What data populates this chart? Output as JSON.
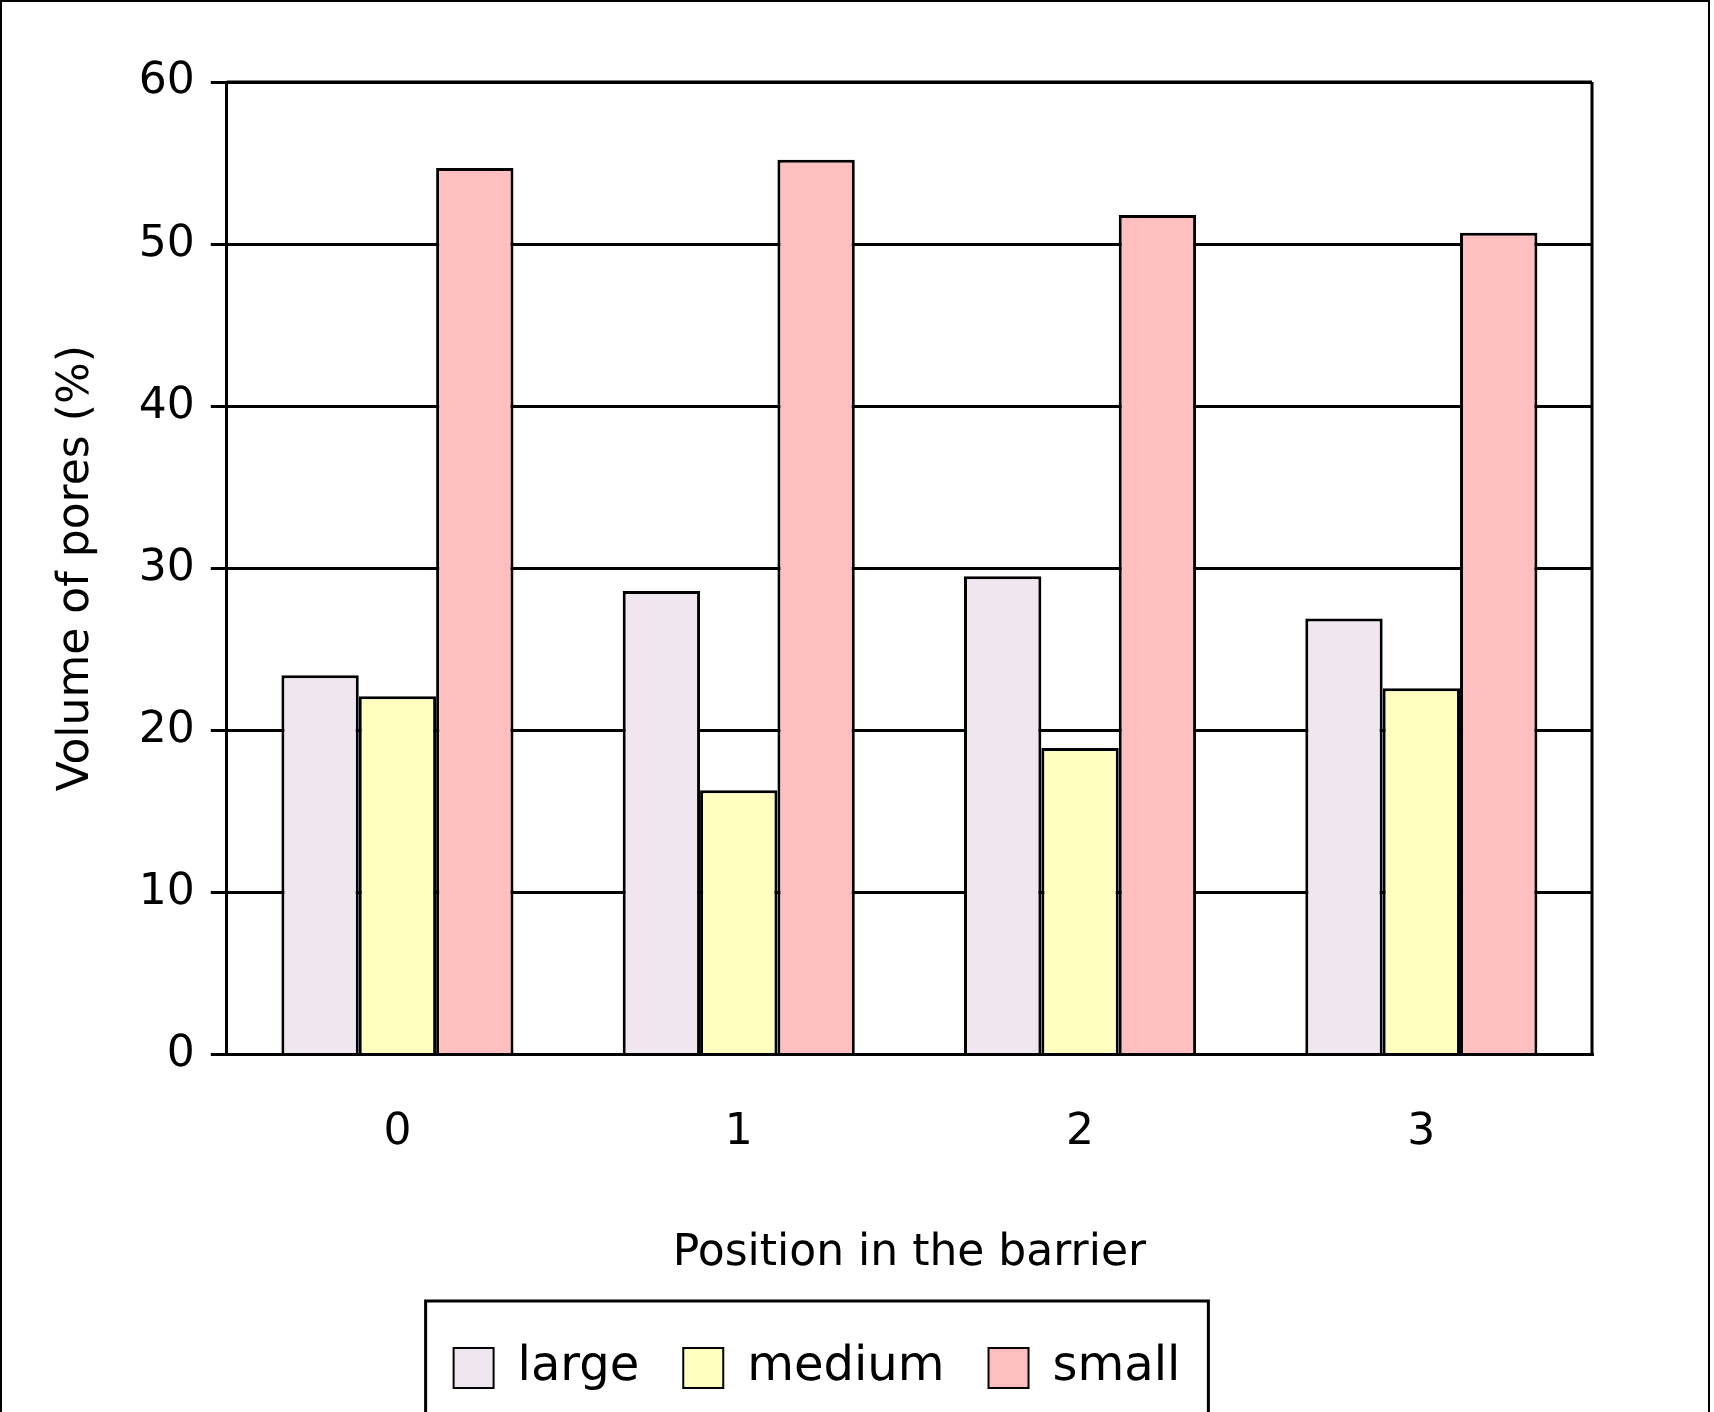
{
  "chart_data": {
    "type": "bar",
    "xlabel": "Position in the barrier",
    "ylabel": "Volume of pores (%)",
    "categories": [
      "0",
      "1",
      "2",
      "3"
    ],
    "series": [
      {
        "name": "large",
        "color": "#efe6ef",
        "values": [
          23.4,
          28.6,
          29.5,
          26.9
        ]
      },
      {
        "name": "medium",
        "color": "#ffffc0",
        "values": [
          22.1,
          16.3,
          18.9,
          22.6
        ]
      },
      {
        "name": "small",
        "color": "#ffbfbf",
        "values": [
          54.7,
          55.2,
          51.8,
          50.7
        ]
      }
    ],
    "ylim": [
      0,
      60
    ],
    "yticks": [
      0,
      10,
      20,
      30,
      40,
      50,
      60
    ],
    "grid": "y",
    "legend": "bottom"
  }
}
